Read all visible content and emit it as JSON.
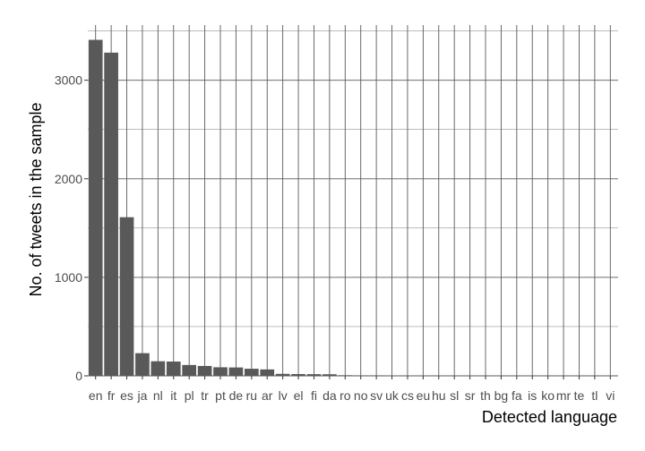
{
  "chart_data": {
    "type": "bar",
    "title": "",
    "xlabel": "Detected language",
    "ylabel": "No. of tweets in the sample",
    "categories": [
      "en",
      "fr",
      "es",
      "ja",
      "nl",
      "it",
      "pl",
      "tr",
      "pt",
      "de",
      "ru",
      "ar",
      "lv",
      "el",
      "fi",
      "da",
      "ro",
      "no",
      "sv",
      "uk",
      "cs",
      "eu",
      "hu",
      "sl",
      "sr",
      "th",
      "bg",
      "fa",
      "is",
      "ko",
      "mr",
      "te",
      "tl",
      "vi"
    ],
    "values": [
      3410,
      3280,
      1610,
      230,
      148,
      145,
      110,
      100,
      87,
      85,
      72,
      65,
      20,
      18,
      17,
      16,
      6,
      5,
      5,
      4,
      4,
      4,
      3,
      3,
      3,
      3,
      3,
      2,
      2,
      2,
      2,
      2,
      2,
      2
    ],
    "ylim": [
      0,
      3560
    ],
    "yticks": [
      0,
      1000,
      2000,
      3000
    ],
    "grid": true,
    "bar_color": "#595959"
  }
}
